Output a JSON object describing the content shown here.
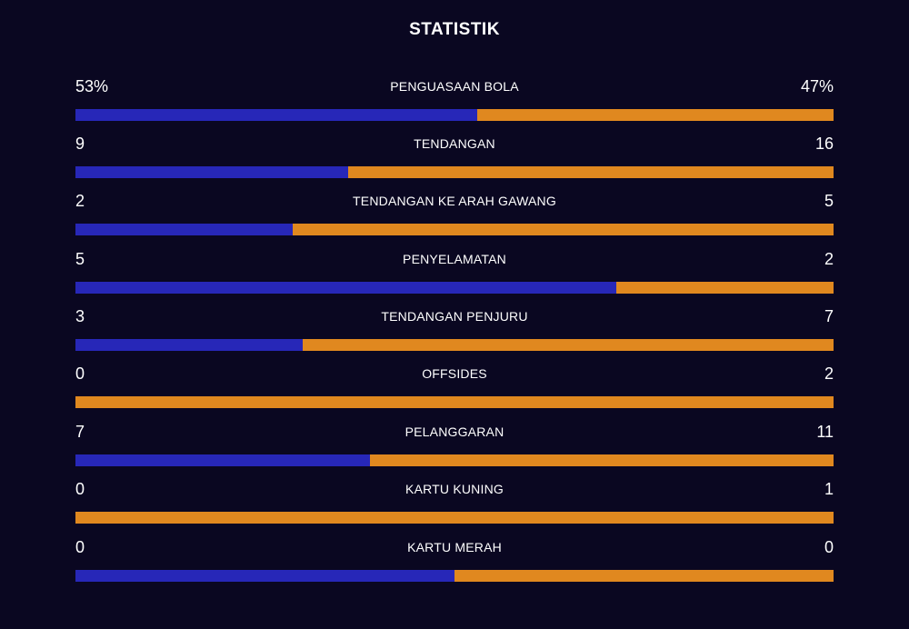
{
  "title": "STATISTIK",
  "colors": {
    "background": "#0a0721",
    "home": "#2727b8",
    "away": "#e0881f"
  },
  "stats": [
    {
      "label": "PENGUASAAN BOLA",
      "home": "53%",
      "away": "47%",
      "home_share": 0.53
    },
    {
      "label": "TENDANGAN",
      "home": "9",
      "away": "16",
      "home_share": 0.36
    },
    {
      "label": "TENDANGAN KE ARAH GAWANG",
      "home": "2",
      "away": "5",
      "home_share": 0.286
    },
    {
      "label": "PENYELAMATAN",
      "home": "5",
      "away": "2",
      "home_share": 0.714
    },
    {
      "label": "TENDANGAN PENJURU",
      "home": "3",
      "away": "7",
      "home_share": 0.3
    },
    {
      "label": "OFFSIDES",
      "home": "0",
      "away": "2",
      "home_share": 0
    },
    {
      "label": "PELANGGARAN",
      "home": "7",
      "away": "11",
      "home_share": 0.389
    },
    {
      "label": "KARTU KUNING",
      "home": "0",
      "away": "1",
      "home_share": 0
    },
    {
      "label": "KARTU MERAH",
      "home": "0",
      "away": "0",
      "home_share": 0.5
    }
  ]
}
